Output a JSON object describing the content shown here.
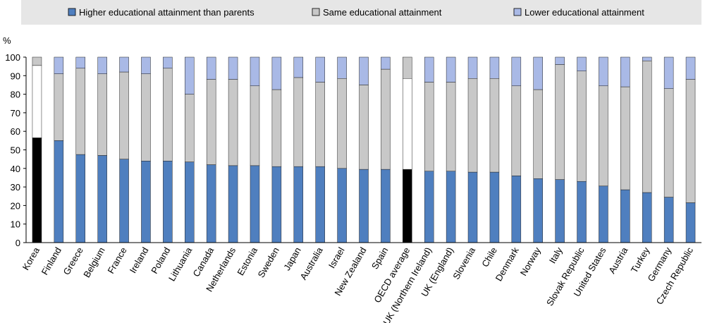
{
  "chart_data": {
    "type": "stacked-bar",
    "categories": [
      "Korea",
      "Finland",
      "Greece",
      "Belgium",
      "France",
      "Ireland",
      "Poland",
      "Lithuania",
      "Canada",
      "Netherlands",
      "Estonia",
      "Sweden",
      "Japan",
      "Australia",
      "Israel",
      "New Zealand",
      "Spain",
      "OECD average",
      "UK (Northern Ireland)",
      "UK (England)",
      "Slovenia",
      "Chile",
      "Denmark",
      "Norway",
      "Italy",
      "Slovak Republic",
      "United States",
      "Austria",
      "Turkey",
      "Germany",
      "Czech Republic"
    ],
    "series": [
      {
        "name": "Higher educational attainment than parents",
        "color": "#4f7fbf",
        "highlight_color": "#000000",
        "values": [
          56.5,
          55,
          47.5,
          47,
          45,
          44,
          44,
          43.5,
          42,
          41.5,
          41.5,
          41,
          41,
          41,
          40,
          39.5,
          39.5,
          39.5,
          38.5,
          38.5,
          38,
          38,
          36,
          34.5,
          34,
          33,
          30.5,
          28.5,
          27,
          24.5,
          21.5
        ]
      },
      {
        "name": "Same educational attainment",
        "color": "#c8c8c8",
        "highlight_color": "#ffffff",
        "values": [
          39,
          36,
          46.5,
          44,
          47,
          47,
          50,
          36.5,
          46,
          46.5,
          43,
          41.5,
          48,
          45.5,
          48.5,
          45.5,
          54,
          49,
          48,
          48,
          50.5,
          50.5,
          48.5,
          48,
          62,
          59.5,
          54,
          55.5,
          71,
          58.5,
          66.5
        ]
      },
      {
        "name": "Lower educational attainment",
        "color": "#a9b9e6",
        "highlight_color": "#c8c8c8",
        "values": [
          4.5,
          9,
          6,
          9,
          8,
          9,
          6,
          20,
          12,
          12,
          15.5,
          17.5,
          11,
          13.5,
          11.5,
          15,
          6.5,
          11.5,
          13.5,
          13.5,
          11.5,
          11.5,
          15.5,
          17.5,
          4,
          7.5,
          15.5,
          16,
          2,
          17,
          12
        ]
      }
    ],
    "highlight": [
      0,
      17
    ],
    "y_label": "%",
    "ylim": [
      0,
      100
    ],
    "yticks": [
      0,
      10,
      20,
      30,
      40,
      50,
      60,
      70,
      80,
      90,
      100
    ],
    "legend": "top"
  }
}
